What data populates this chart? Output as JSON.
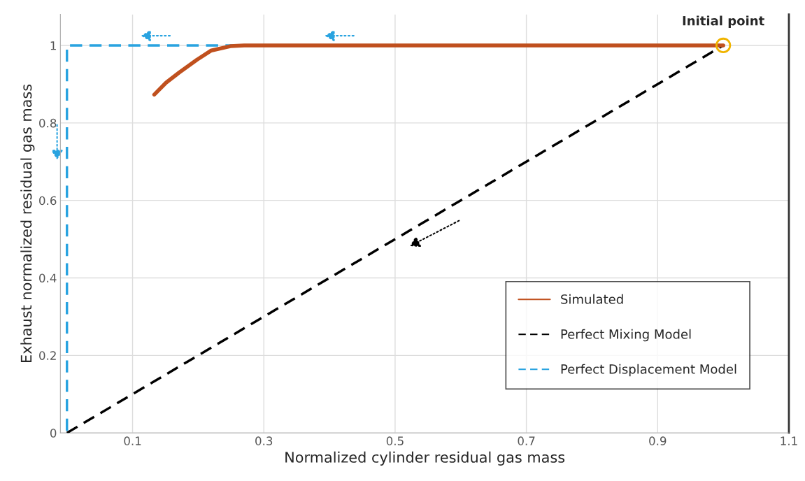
{
  "chart_data": {
    "type": "line",
    "xlabel": "Normalized cylinder residual gas mass",
    "ylabel": "Exhaust normalized residual gas mass",
    "series": [
      {
        "name": "Simulated",
        "color": "#c0501e",
        "line_style": "solid",
        "x": [
          0.133,
          0.151,
          0.171,
          0.198,
          0.22,
          0.249,
          0.27,
          1.0
        ],
        "values": [
          0.873,
          0.904,
          0.93,
          0.963,
          0.987,
          0.998,
          1.0,
          1.0
        ]
      },
      {
        "name": "Perfect Mixing Model",
        "color": "#000000",
        "line_style": "dashed",
        "x": [
          0,
          1
        ],
        "values": [
          0,
          1
        ]
      },
      {
        "name": "Perfect Displacement Model",
        "color": "#29a3e0",
        "line_style": "dashed",
        "x": [
          1,
          0,
          0
        ],
        "values": [
          1,
          1,
          0
        ]
      }
    ],
    "annotations": [
      {
        "text": "Initial point",
        "x": 1,
        "y": 1
      }
    ],
    "xlim": [
      -0.01,
      1.1
    ],
    "ylim": [
      0,
      1.08
    ],
    "xticks": [
      0.1,
      0.3,
      0.5,
      0.7,
      0.9,
      1.1
    ],
    "yticks": [
      0,
      0.2,
      0.4,
      0.6,
      0.8,
      1
    ],
    "grid": true,
    "legend": "bottom right",
    "marker": "none"
  }
}
